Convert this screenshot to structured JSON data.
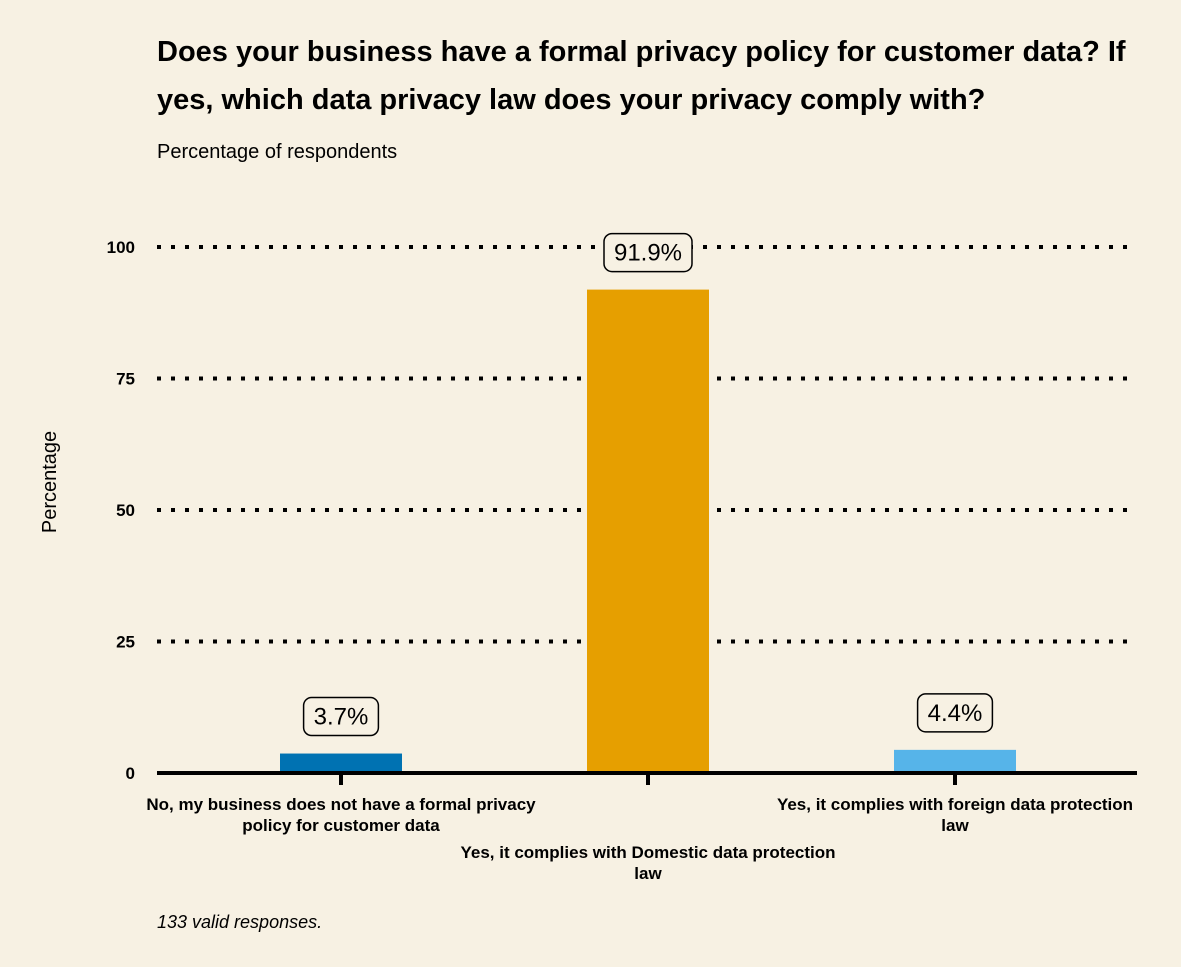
{
  "chart_data": {
    "type": "bar",
    "title": "Does your business have a formal privacy policy for customer data? If yes, which data privacy law does your privacy comply with?",
    "subtitle": "Percentage of respondents",
    "ylabel": "Percentage",
    "xlabel": "",
    "ylim": [
      0,
      100
    ],
    "yticks": [
      0,
      25,
      50,
      75,
      100
    ],
    "grid": true,
    "categories": [
      "No, my business does not have a formal privacy policy for customer data",
      "Yes, it complies with Domestic data protection law",
      "Yes, it complies with foreign data protection law"
    ],
    "category_label_lines": [
      [
        "No, my business does not have a formal privacy",
        "policy for customer data"
      ],
      [
        "Yes, it complies with Domestic data protection",
        "law"
      ],
      [
        "Yes, it complies with foreign data protection",
        "law"
      ]
    ],
    "values": [
      3.7,
      91.9,
      4.4
    ],
    "data_labels": [
      "3.7%",
      "91.9%",
      "4.4%"
    ],
    "colors": [
      "#0072b2",
      "#e69f00",
      "#56b4e9"
    ],
    "note": "133 valid responses."
  }
}
